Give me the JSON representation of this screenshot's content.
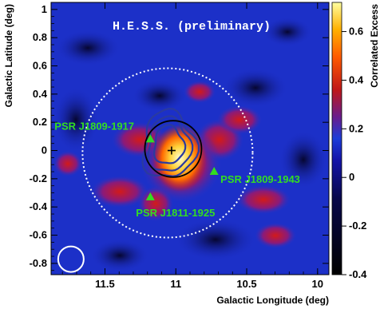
{
  "chart_data": {
    "type": "heatmap",
    "title": "",
    "annotation_title": "H.E.S.S.  (preliminary)",
    "xlabel": "Galactic Longitude (deg)",
    "ylabel": "Galactic Latitude (deg)",
    "colorbar_label": "Correlated Excess",
    "xlim": [
      11.88,
      9.92
    ],
    "ylim": [
      -0.88,
      1.05
    ],
    "x_ticks": [
      11.5,
      11,
      10.5,
      10
    ],
    "x_tick_labels": [
      "11.5",
      "11",
      "10.5",
      "10"
    ],
    "y_ticks": [
      1,
      0.8,
      0.6,
      0.4,
      0.2,
      0,
      -0.2,
      -0.4,
      -0.6,
      -0.8
    ],
    "y_tick_labels": [
      "1",
      "0.8",
      "0.6",
      "0.4",
      "0.2",
      "0",
      "-0.2",
      "-0.4",
      "-0.6",
      "-0.8"
    ],
    "colorbar_range": [
      -0.4,
      0.72
    ],
    "colorbar_ticks": [
      0.6,
      0.4,
      0.2,
      0,
      -0.2,
      -0.4
    ],
    "colorbar_tick_labels": [
      "0.6",
      "0.4",
      "0.2",
      "0",
      "-0.2",
      "-0.4"
    ],
    "pulsars": [
      {
        "name": "PSR J1809-1917",
        "l": 11.18,
        "b": 0.08
      },
      {
        "name": "PSR J1809-1943",
        "l": 10.73,
        "b": -0.15
      },
      {
        "name": "PSR J1811-1925",
        "l": 11.18,
        "b": -0.33
      }
    ],
    "best_fit_position": {
      "l": 11.03,
      "b": 0.0
    },
    "extended_source_peak": {
      "l": 11.05,
      "b": 0.06
    },
    "colors": {
      "pulsar_marker": "#33dd22",
      "dashed_circle": "#ffffff",
      "psf_circle": "#ffffff",
      "fit_ellipse": "#000000",
      "contours": "#2a3aa0"
    }
  }
}
